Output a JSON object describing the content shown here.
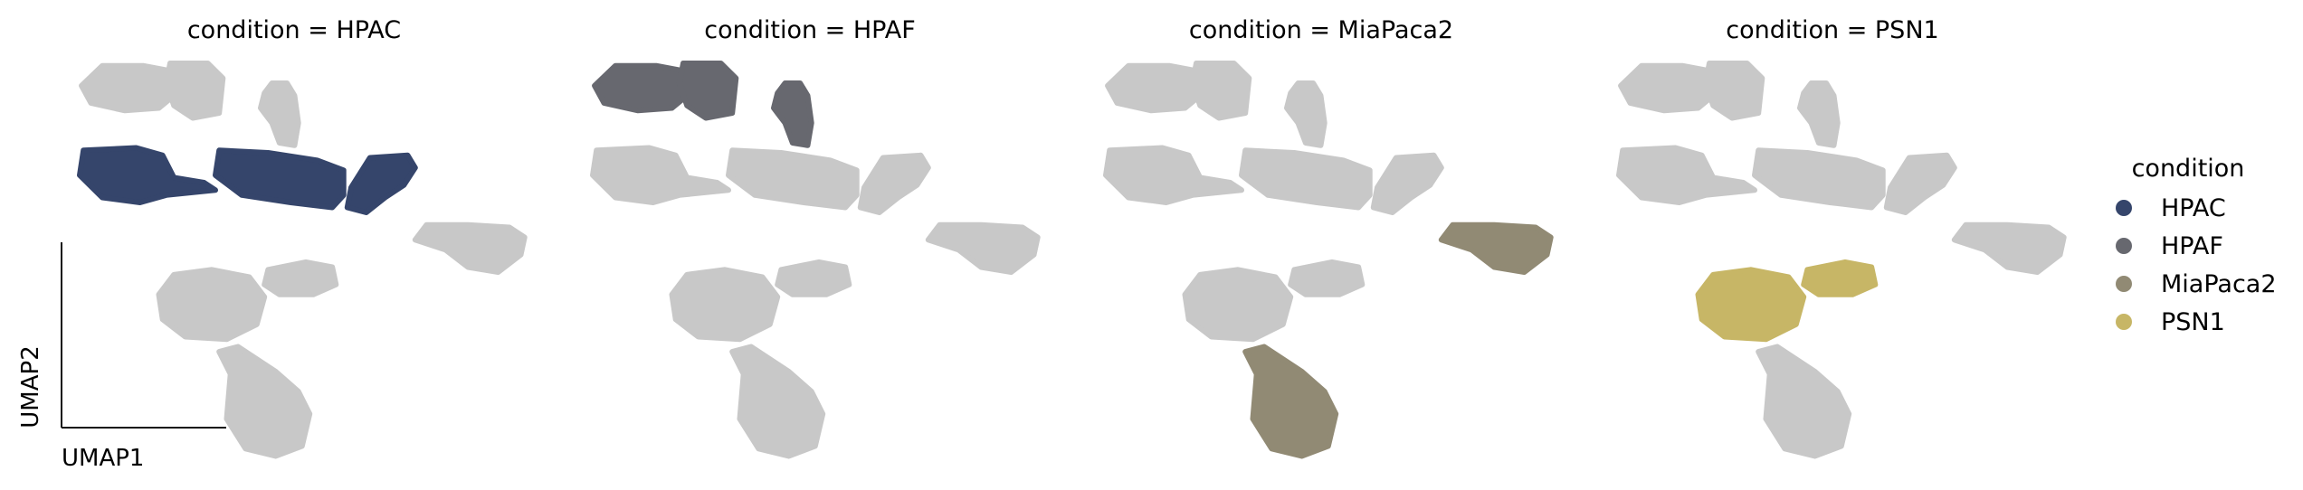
{
  "chart_data": {
    "type": "scatter",
    "embedding": "UMAP",
    "xlabel": "UMAP1",
    "ylabel": "UMAP2",
    "background_color": "#c8c8c8",
    "panels": [
      {
        "title": "condition = HPAC",
        "highlight": "HPAC"
      },
      {
        "title": "condition = HPAF",
        "highlight": "HPAF"
      },
      {
        "title": "condition = MiaPaca2",
        "highlight": "MiaPaca2"
      },
      {
        "title": "condition = PSN1",
        "highlight": "PSN1"
      }
    ],
    "legend": {
      "title": "condition",
      "position": "right",
      "entries": [
        {
          "name": "HPAC",
          "color": "#35456b"
        },
        {
          "name": "HPAF",
          "color": "#67686f"
        },
        {
          "name": "MiaPaca2",
          "color": "#918a74"
        },
        {
          "name": "PSN1",
          "color": "#c7b666"
        }
      ]
    },
    "clusters": [
      {
        "id": "c1",
        "condition": "HPAF",
        "shape": [
          [
            0.6,
            0.1
          ],
          [
            1.7,
            0.1
          ],
          [
            2.4,
            0.3
          ],
          [
            2.5,
            1.3
          ],
          [
            2.1,
            1.8
          ],
          [
            1.2,
            1.9
          ],
          [
            0.3,
            1.6
          ],
          [
            0.05,
            0.9
          ]
        ]
      },
      {
        "id": "c2",
        "condition": "HPAF",
        "shape": [
          [
            2.4,
            0.0
          ],
          [
            3.4,
            0.0
          ],
          [
            3.8,
            0.6
          ],
          [
            3.7,
            2.0
          ],
          [
            3.0,
            2.2
          ],
          [
            2.5,
            1.7
          ],
          [
            2.3,
            0.8
          ]
        ]
      },
      {
        "id": "c3",
        "condition": "HPAF",
        "shape": [
          [
            5.1,
            0.8
          ],
          [
            5.5,
            0.8
          ],
          [
            5.7,
            1.3
          ],
          [
            5.8,
            2.4
          ],
          [
            5.7,
            3.3
          ],
          [
            5.3,
            3.2
          ],
          [
            5.1,
            2.4
          ],
          [
            4.8,
            1.8
          ],
          [
            4.9,
            1.2
          ]
        ]
      },
      {
        "id": "c4",
        "condition": "HPAC",
        "shape": [
          [
            0.1,
            3.5
          ],
          [
            1.5,
            3.4
          ],
          [
            2.2,
            3.7
          ],
          [
            2.5,
            4.6
          ],
          [
            3.3,
            4.8
          ],
          [
            3.6,
            5.1
          ],
          [
            2.3,
            5.3
          ],
          [
            1.6,
            5.6
          ],
          [
            0.6,
            5.4
          ],
          [
            0.0,
            4.5
          ]
        ]
      },
      {
        "id": "c5",
        "condition": "HPAC",
        "shape": [
          [
            3.7,
            3.5
          ],
          [
            5.0,
            3.6
          ],
          [
            6.3,
            3.9
          ],
          [
            7.0,
            4.3
          ],
          [
            7.0,
            5.3
          ],
          [
            6.7,
            5.8
          ],
          [
            5.6,
            5.6
          ],
          [
            4.3,
            5.3
          ],
          [
            3.6,
            4.5
          ]
        ]
      },
      {
        "id": "c6",
        "condition": "HPAC",
        "shape": [
          [
            7.7,
            3.8
          ],
          [
            8.7,
            3.7
          ],
          [
            8.9,
            4.2
          ],
          [
            8.6,
            4.9
          ],
          [
            8.1,
            5.4
          ],
          [
            7.6,
            6.0
          ],
          [
            7.1,
            5.8
          ],
          [
            7.2,
            5.0
          ]
        ]
      },
      {
        "id": "c7",
        "condition": "MiaPaca2",
        "shape": [
          [
            9.2,
            6.5
          ],
          [
            10.3,
            6.5
          ],
          [
            11.4,
            6.6
          ],
          [
            11.8,
            7.0
          ],
          [
            11.7,
            7.7
          ],
          [
            11.1,
            8.4
          ],
          [
            10.3,
            8.2
          ],
          [
            9.7,
            7.5
          ],
          [
            8.9,
            7.1
          ]
        ]
      },
      {
        "id": "c8",
        "condition": "PSN1",
        "shape": [
          [
            2.5,
            8.5
          ],
          [
            3.5,
            8.3
          ],
          [
            4.5,
            8.6
          ],
          [
            4.9,
            9.4
          ],
          [
            4.7,
            10.5
          ],
          [
            3.9,
            11.1
          ],
          [
            2.8,
            11.0
          ],
          [
            2.2,
            10.3
          ],
          [
            2.1,
            9.3
          ]
        ]
      },
      {
        "id": "c9",
        "condition": "PSN1",
        "shape": [
          [
            5.0,
            8.3
          ],
          [
            6.0,
            8.0
          ],
          [
            6.7,
            8.2
          ],
          [
            6.8,
            8.9
          ],
          [
            6.2,
            9.3
          ],
          [
            5.3,
            9.3
          ],
          [
            4.9,
            8.9
          ]
        ]
      },
      {
        "id": "c10",
        "condition": "MiaPaca2",
        "shape": [
          [
            4.2,
            11.4
          ],
          [
            5.2,
            12.4
          ],
          [
            5.8,
            13.2
          ],
          [
            6.1,
            14.1
          ],
          [
            5.9,
            15.4
          ],
          [
            5.2,
            15.8
          ],
          [
            4.4,
            15.5
          ],
          [
            3.9,
            14.3
          ],
          [
            4.0,
            12.5
          ],
          [
            3.7,
            11.6
          ]
        ]
      }
    ],
    "xlim": [
      0,
      12
    ],
    "ylim": [
      0,
      16
    ]
  }
}
